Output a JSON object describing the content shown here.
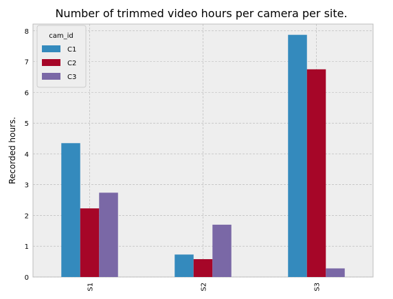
{
  "chart_data": {
    "type": "bar",
    "title": "Number of trimmed video hours per camera per site.",
    "xlabel": "",
    "ylabel": "Recorded hours.",
    "categories": [
      "S1",
      "S2",
      "S3"
    ],
    "series": [
      {
        "name": "C1",
        "color": "#348ABD",
        "values": [
          4.35,
          0.73,
          7.87
        ]
      },
      {
        "name": "C2",
        "color": "#A60628",
        "values": [
          2.23,
          0.58,
          6.75
        ]
      },
      {
        "name": "C3",
        "color": "#7A68A6",
        "values": [
          2.74,
          1.7,
          0.28
        ]
      }
    ],
    "ylim": [
      0,
      8.22
    ],
    "yticks": [
      "0",
      "1",
      "2",
      "3",
      "4",
      "5",
      "6",
      "7",
      "8"
    ],
    "grid": true,
    "legend": {
      "title": "cam_id",
      "position": "top-left"
    },
    "background": "#EEEEEE"
  }
}
